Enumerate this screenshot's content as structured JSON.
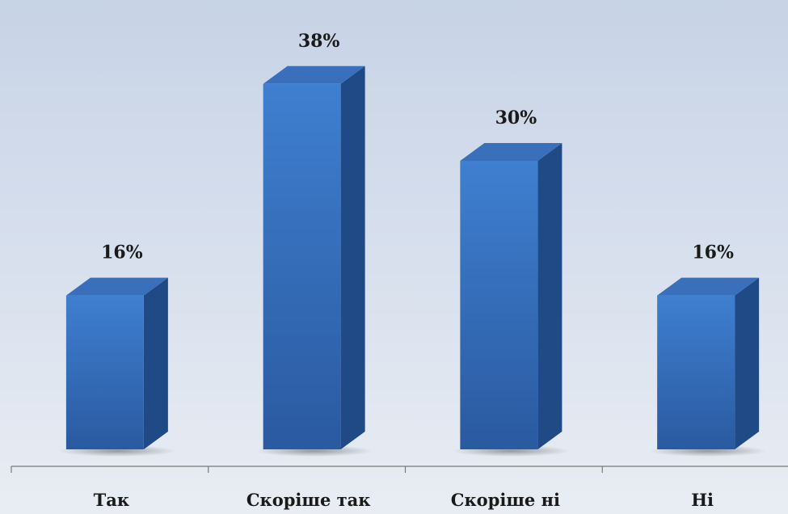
{
  "chart_data": {
    "type": "bar",
    "categories": [
      "Так",
      "Скоріше так",
      "Скоріше ні",
      "Ні"
    ],
    "values": [
      16,
      38,
      30,
      16
    ],
    "value_labels": [
      "16%",
      "38%",
      "30%",
      "16%"
    ],
    "title": "",
    "xlabel": "",
    "ylabel": "",
    "ylim": [
      0,
      40
    ],
    "grid": false,
    "legend": "none",
    "style": "3d-column",
    "colors": {
      "front_top": "#3f7fd0",
      "front_bottom": "#2a5aa0",
      "side": "#1f4a86",
      "top": "#3a6fbb"
    }
  }
}
